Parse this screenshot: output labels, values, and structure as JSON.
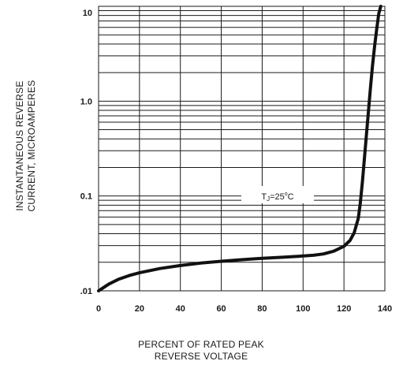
{
  "chart_data": {
    "type": "line",
    "xlabel_lines": [
      "PERCENT OF RATED PEAK",
      "REVERSE VOLTAGE"
    ],
    "ylabel_lines": [
      "INSTANTANEOUS REVERSE",
      "CURRENT, MICROAMPERES"
    ],
    "x_scale": "linear",
    "y_scale": "log",
    "xlim": [
      0,
      140
    ],
    "ylim": [
      0.01,
      10
    ],
    "x_ticks": [
      "0",
      "20",
      "40",
      "60",
      "80",
      "100",
      "120",
      "140"
    ],
    "y_ticks": [
      {
        "value": 10,
        "label": "10"
      },
      {
        "value": 1,
        "label": "1.0"
      },
      {
        "value": 0.1,
        "label": "0.1"
      },
      {
        "value": 0.01,
        "label": ".01"
      }
    ],
    "grid": true,
    "annotation": {
      "t": "T",
      "sub": "J",
      "mid": "=25",
      "sup": "o",
      "end": "C"
    },
    "series": [
      {
        "x": [
          0,
          5,
          10,
          15,
          20,
          30,
          40,
          50,
          60,
          70,
          80,
          90,
          100,
          105,
          110,
          115,
          120,
          123,
          125,
          127,
          128,
          129,
          130,
          131,
          132,
          133,
          134,
          135,
          136,
          137,
          138
        ],
        "y": [
          0.0098,
          0.0118,
          0.0133,
          0.0145,
          0.0155,
          0.0172,
          0.0185,
          0.0196,
          0.0205,
          0.0213,
          0.022,
          0.0226,
          0.0233,
          0.0237,
          0.0245,
          0.0262,
          0.0295,
          0.034,
          0.041,
          0.058,
          0.085,
          0.14,
          0.25,
          0.45,
          0.8,
          1.4,
          2.4,
          3.8,
          5.7,
          8.3,
          12
        ]
      }
    ]
  }
}
